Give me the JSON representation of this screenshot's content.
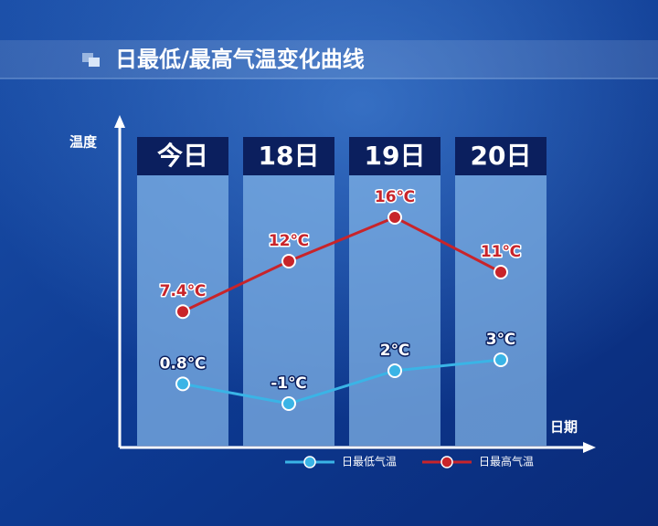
{
  "chart_data": {
    "type": "line",
    "title": "日最低/最高气温变化曲线",
    "y_label": "温度",
    "x_label": "日期",
    "categories": [
      "今日",
      "18日",
      "19日",
      "20日"
    ],
    "ylim": [
      -5,
      25
    ],
    "series": [
      {
        "name": "日最低气温",
        "color": "#3ab4e6",
        "values": [
          0.8,
          -1,
          2,
          3
        ],
        "value_labels": [
          "0.8℃",
          "-1℃",
          "2℃",
          "3℃"
        ]
      },
      {
        "name": "日最高气温",
        "color": "#c8242a",
        "values": [
          7.4,
          12,
          16,
          11
        ],
        "value_labels": [
          "7.4℃",
          "12℃",
          "16℃",
          "11℃"
        ]
      }
    ]
  }
}
